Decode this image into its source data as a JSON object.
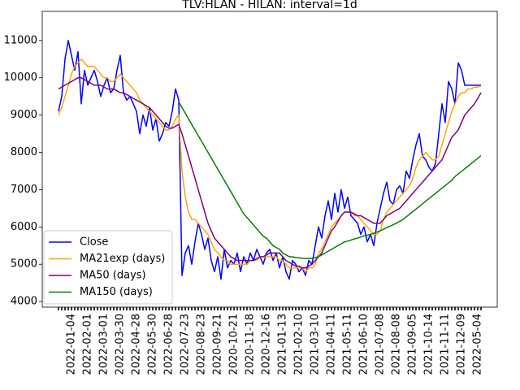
{
  "chart_data": {
    "type": "line",
    "title": "TLV:HLAN - HILAN: interval=1d",
    "categories": [
      null,
      null,
      null,
      null,
      "2022-01-04",
      null,
      null,
      null,
      null,
      "2022-02-01",
      null,
      null,
      null,
      null,
      "2022-03-01",
      null,
      null,
      null,
      null,
      "2022-03-30",
      null,
      null,
      null,
      null,
      "2022-04-28",
      null,
      null,
      null,
      null,
      "2022-05-30",
      null,
      null,
      null,
      null,
      "2022-06-28",
      null,
      null,
      null,
      null,
      "2022-07-23",
      null,
      null,
      null,
      null,
      "2020-08-23",
      null,
      null,
      null,
      null,
      "2020-09-21",
      null,
      null,
      null,
      null,
      "2020-10-21",
      null,
      null,
      null,
      null,
      "2020-11-18",
      null,
      null,
      null,
      null,
      "2020-12-16",
      null,
      null,
      null,
      null,
      "2021-01-13",
      null,
      null,
      null,
      null,
      "2021-02-10",
      null,
      null,
      null,
      null,
      "2021-03-10",
      null,
      null,
      null,
      null,
      "2021-04-11",
      null,
      null,
      null,
      null,
      "2021-05-11",
      null,
      null,
      null,
      null,
      "2021-06-10",
      null,
      null,
      null,
      null,
      "2021-07-08",
      null,
      null,
      null,
      null,
      "2021-08-08",
      null,
      null,
      null,
      null,
      "2021-09-05",
      null,
      null,
      null,
      null,
      "2021-10-14",
      null,
      null,
      null,
      null,
      "2021-11-11",
      null,
      null,
      null,
      null,
      "2021-12-09",
      null,
      null,
      null,
      null,
      "2022-05-04",
      null
    ],
    "series": [
      {
        "name": "Close",
        "color": "#0000ff",
        "width": 1.5,
        "values": [
          9100,
          9500,
          10500,
          11000,
          10600,
          10200,
          10700,
          9300,
          10200,
          9800,
          10000,
          10200,
          9900,
          9500,
          9800,
          10000,
          9600,
          9700,
          10200,
          10600,
          9600,
          9400,
          9500,
          9300,
          9100,
          8500,
          9000,
          8700,
          9200,
          8600,
          8900,
          8300,
          8500,
          8800,
          8700,
          9100,
          9700,
          9400,
          4700,
          5300,
          5500,
          5000,
          5600,
          6100,
          5800,
          5400,
          5700,
          5100,
          4800,
          5200,
          4600,
          5400,
          4900,
          5100,
          5000,
          5300,
          4800,
          5200,
          5000,
          5300,
          5100,
          5400,
          5200,
          5000,
          5300,
          5400,
          5100,
          5300,
          4900,
          5200,
          4800,
          4600,
          5100,
          5000,
          4800,
          4900,
          4700,
          5100,
          5000,
          5500,
          6000,
          5700,
          6300,
          6700,
          6200,
          6900,
          6400,
          7000,
          6500,
          6800,
          6300,
          6200,
          6100,
          5800,
          6000,
          5600,
          5800,
          5500,
          6100,
          6500,
          6900,
          7200,
          6700,
          6600,
          7000,
          7100,
          6900,
          7500,
          7300,
          7800,
          8200,
          8500,
          7900,
          7800,
          7600,
          7500,
          7700,
          8500,
          9300,
          8800,
          9900,
          9700,
          9300,
          10400,
          10200,
          9800,
          9800,
          9800,
          9800,
          9800,
          9800
        ]
      },
      {
        "name": "MA21exp (days)",
        "color": "#ffa500",
        "width": 1.5,
        "values": [
          9000,
          9200,
          9500,
          9800,
          10100,
          10300,
          10400,
          10500,
          10400,
          10300,
          10300,
          10300,
          10200,
          10100,
          10000,
          10000,
          9900,
          9900,
          10000,
          10100,
          10000,
          9900,
          9800,
          9700,
          9600,
          9400,
          9300,
          9200,
          9100,
          9000,
          8900,
          8800,
          8700,
          8600,
          8600,
          8700,
          8900,
          9000,
          7500,
          6800,
          6400,
          6200,
          6200,
          6100,
          6000,
          5900,
          5800,
          5600,
          5400,
          5300,
          5200,
          5100,
          5100,
          5000,
          5000,
          5000,
          5000,
          5000,
          5000,
          5100,
          5100,
          5100,
          5200,
          5200,
          5200,
          5200,
          5200,
          5200,
          5100,
          5100,
          5000,
          4900,
          4900,
          4900,
          4900,
          4900,
          4800,
          4900,
          4900,
          5000,
          5300,
          5400,
          5600,
          5800,
          6000,
          6100,
          6200,
          6300,
          6400,
          6400,
          6400,
          6300,
          6300,
          6200,
          6100,
          6000,
          5900,
          5800,
          5800,
          5900,
          6200,
          6400,
          6500,
          6600,
          6700,
          6800,
          6900,
          7000,
          7100,
          7300,
          7600,
          7800,
          7900,
          8000,
          7900,
          7800,
          7800,
          7900,
          8200,
          8500,
          8800,
          9100,
          9300,
          9500,
          9600,
          9600,
          9700,
          9700,
          9750,
          9750,
          9780
        ]
      },
      {
        "name": "MA50 (days)",
        "color": "#800080",
        "width": 1.5,
        "values": [
          9700,
          9750,
          9800,
          9850,
          9900,
          9950,
          10000,
          10000,
          9950,
          9900,
          9850,
          9800,
          9800,
          9800,
          9750,
          9700,
          9700,
          9700,
          9650,
          9600,
          9600,
          9550,
          9500,
          9450,
          9400,
          9350,
          9300,
          9250,
          9200,
          9100,
          9000,
          8900,
          8800,
          8700,
          8650,
          8650,
          8700,
          8750,
          8500,
          8200,
          7900,
          7600,
          7300,
          7000,
          6700,
          6400,
          6100,
          5900,
          5700,
          5600,
          5500,
          5400,
          5300,
          5200,
          5150,
          5100,
          5100,
          5100,
          5100,
          5100,
          5100,
          5150,
          5200,
          5200,
          5250,
          5300,
          5300,
          5300,
          5300,
          5200,
          5100,
          5050,
          5000,
          4950,
          4950,
          4900,
          4900,
          4950,
          5000,
          5100,
          5200,
          5300,
          5500,
          5700,
          5900,
          6000,
          6150,
          6300,
          6400,
          6400,
          6400,
          6350,
          6300,
          6300,
          6250,
          6200,
          6150,
          6100,
          6100,
          6100,
          6200,
          6300,
          6350,
          6400,
          6450,
          6500,
          6600,
          6700,
          6800,
          6900,
          7000,
          7100,
          7200,
          7300,
          7400,
          7500,
          7600,
          7700,
          7800,
          8000,
          8200,
          8400,
          8500,
          8600,
          8800,
          9000,
          9100,
          9200,
          9300,
          9450,
          9600
        ]
      },
      {
        "name": "MA150 (days)",
        "color": "#008000",
        "width": 1.5,
        "values": [
          null,
          null,
          null,
          null,
          null,
          null,
          null,
          null,
          null,
          null,
          null,
          null,
          null,
          null,
          null,
          null,
          null,
          null,
          null,
          null,
          null,
          null,
          null,
          null,
          null,
          null,
          null,
          null,
          null,
          null,
          null,
          null,
          null,
          null,
          null,
          null,
          null,
          9350,
          9200,
          9050,
          8900,
          8750,
          8600,
          8450,
          8300,
          8150,
          8000,
          7850,
          7700,
          7550,
          7400,
          7250,
          7100,
          6950,
          6800,
          6650,
          6500,
          6350,
          6250,
          6150,
          6050,
          5950,
          5850,
          5750,
          5700,
          5600,
          5500,
          5450,
          5400,
          5300,
          5250,
          5200,
          5200,
          5180,
          5170,
          5160,
          5150,
          5150,
          5160,
          5180,
          5200,
          5250,
          5300,
          5350,
          5400,
          5450,
          5500,
          5550,
          5600,
          5620,
          5650,
          5680,
          5700,
          5730,
          5760,
          5780,
          5800,
          5830,
          5860,
          5900,
          5940,
          5980,
          6020,
          6060,
          6100,
          6150,
          6200,
          6270,
          6340,
          6410,
          6480,
          6550,
          6620,
          6690,
          6760,
          6830,
          6900,
          6970,
          7040,
          7110,
          7180,
          7250,
          7350,
          7420,
          7490,
          7560,
          7630,
          7700,
          7770,
          7840,
          7910
        ]
      }
    ],
    "ylim": [
      3850,
      11780
    ],
    "yticks": [
      4000,
      5000,
      6000,
      7000,
      8000,
      9000,
      10000,
      11000
    ],
    "legend": "lower left",
    "grid": false
  }
}
